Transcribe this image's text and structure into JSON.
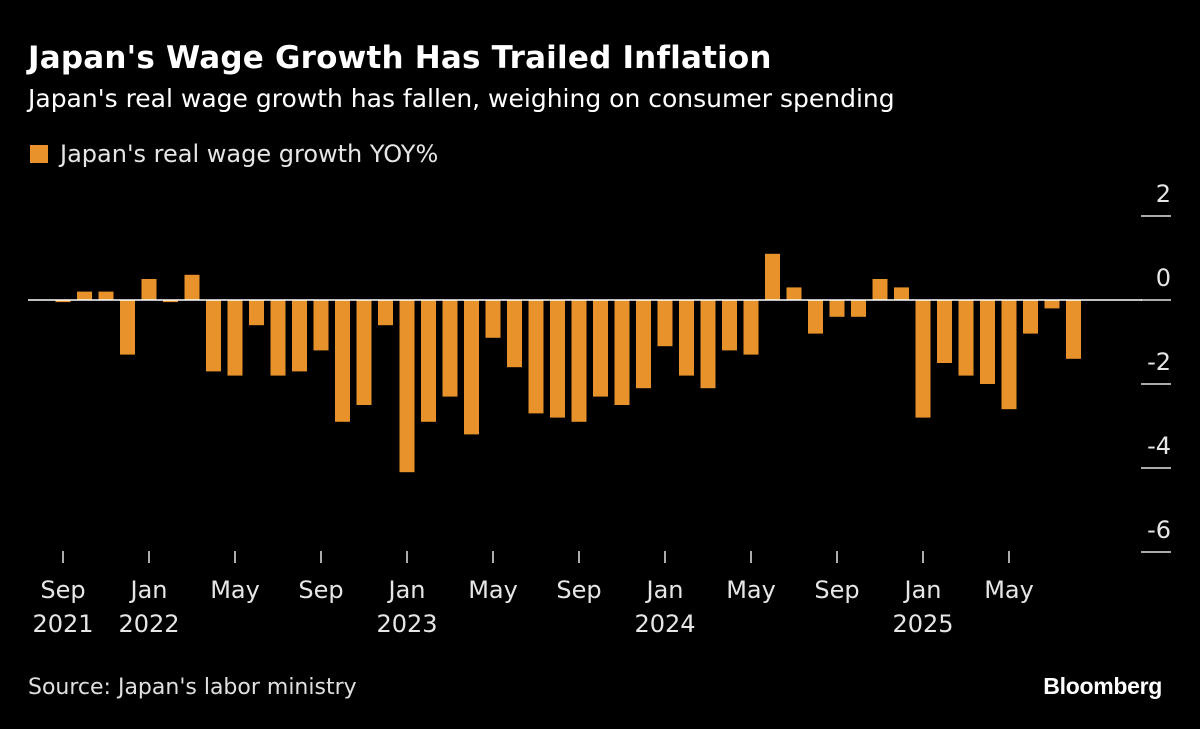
{
  "header": {
    "title": "Japan's Wage Growth Has Trailed Inflation",
    "subtitle": "Japan's real wage growth has fallen, weighing on consumer spending"
  },
  "footer": {
    "source": "Source: Japan's labor ministry",
    "brand": "Bloomberg"
  },
  "colors": {
    "bar": "#e8922b",
    "background": "#000000",
    "axis": "#ffffff"
  },
  "chart_data": {
    "type": "bar",
    "title": "Japan's Wage Growth Has Trailed Inflation",
    "subtitle": "Japan's real wage growth has fallen, weighing on consumer spending",
    "xlabel": "",
    "ylabel": "",
    "legend": {
      "position": "top-left",
      "entries": [
        "Japan's real wage growth YOY%"
      ]
    },
    "grid": false,
    "ylim": [
      -6,
      2
    ],
    "yticks": [
      2,
      0,
      -2,
      -4,
      -6
    ],
    "ytick_labels": [
      "2",
      "0",
      "-2",
      "-4",
      "-6"
    ],
    "yaxis_side": "right",
    "xtick_labels": [
      {
        "index": 0,
        "month": "Sep",
        "year": "2021"
      },
      {
        "index": 4,
        "month": "Jan",
        "year": "2022"
      },
      {
        "index": 8,
        "month": "May",
        "year": ""
      },
      {
        "index": 12,
        "month": "Sep",
        "year": ""
      },
      {
        "index": 16,
        "month": "Jan",
        "year": "2023"
      },
      {
        "index": 20,
        "month": "May",
        "year": ""
      },
      {
        "index": 24,
        "month": "Sep",
        "year": ""
      },
      {
        "index": 28,
        "month": "Jan",
        "year": "2024"
      },
      {
        "index": 32,
        "month": "May",
        "year": ""
      },
      {
        "index": 36,
        "month": "Sep",
        "year": ""
      },
      {
        "index": 40,
        "month": "Jan",
        "year": "2025"
      },
      {
        "index": 44,
        "month": "May",
        "year": ""
      }
    ],
    "categories": [
      "2021-09",
      "2021-10",
      "2021-11",
      "2021-12",
      "2022-01",
      "2022-02",
      "2022-03",
      "2022-04",
      "2022-05",
      "2022-06",
      "2022-07",
      "2022-08",
      "2022-09",
      "2022-10",
      "2022-11",
      "2022-12",
      "2023-01",
      "2023-02",
      "2023-03",
      "2023-04",
      "2023-05",
      "2023-06",
      "2023-07",
      "2023-08",
      "2023-09",
      "2023-10",
      "2023-11",
      "2023-12",
      "2024-01",
      "2024-02",
      "2024-03",
      "2024-04",
      "2024-05",
      "2024-06",
      "2024-07",
      "2024-08",
      "2024-09",
      "2024-10",
      "2024-11",
      "2024-12",
      "2025-01",
      "2025-02",
      "2025-03",
      "2025-04",
      "2025-05",
      "2025-06",
      "2025-07",
      "2025-08"
    ],
    "series": [
      {
        "name": "Japan's real wage growth YOY%",
        "values": [
          -0.05,
          0.2,
          0.2,
          -1.3,
          0.5,
          -0.05,
          0.6,
          -1.7,
          -1.8,
          -0.6,
          -1.8,
          -1.7,
          -1.2,
          -2.9,
          -2.5,
          -0.6,
          -4.1,
          -2.9,
          -2.3,
          -3.2,
          -0.9,
          -1.6,
          -2.7,
          -2.8,
          -2.9,
          -2.3,
          -2.5,
          -2.1,
          -1.1,
          -1.8,
          -2.1,
          -1.2,
          -1.3,
          1.1,
          0.3,
          -0.8,
          -0.4,
          -0.4,
          0.5,
          0.3,
          -2.8,
          -1.5,
          -1.8,
          -2.0,
          -2.6,
          -0.8,
          -0.2,
          -1.4
        ]
      }
    ]
  }
}
